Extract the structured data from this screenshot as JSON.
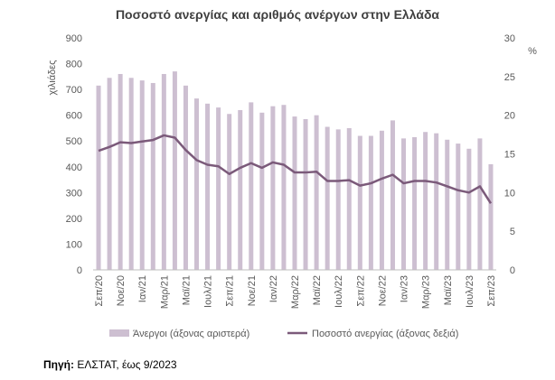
{
  "source": {
    "label": "Πηγή:",
    "text": " ΕΛΣΤΑΤ, έως 9/2023"
  },
  "chart_data": {
    "type": "bar",
    "title": "Ποσοστό ανεργίας και αριθμός ανέργων στην Ελλάδα",
    "ylabel_left": "χιλιάδες",
    "ylabel_right": "%",
    "ylim_left": [
      0,
      900
    ],
    "yticks_left": [
      0,
      100,
      200,
      300,
      400,
      500,
      600,
      700,
      800,
      900
    ],
    "ylim_right": [
      0,
      30
    ],
    "yticks_right": [
      0,
      5,
      10,
      15,
      20,
      25,
      30
    ],
    "grid": false,
    "legend_position": "bottom",
    "x": [
      "Σεπ/20",
      "Οκτ/20",
      "Νοε/20",
      "Δεκ/20",
      "Ιαν/21",
      "Φεβ/21",
      "Μαρ/21",
      "Απρ/21",
      "Μαϊ/21",
      "Ιουν/21",
      "Ιουλ/21",
      "Αυγ/21",
      "Σεπ/21",
      "Οκτ/21",
      "Νοε/21",
      "Δεκ/21",
      "Ιαν/22",
      "Φεβ/22",
      "Μαρ/22",
      "Απρ/22",
      "Μαϊ/22",
      "Ιουν/22",
      "Ιουλ/22",
      "Αυγ/22",
      "Σεπ/22",
      "Οκτ/22",
      "Νοε/22",
      "Δεκ/22",
      "Ιαν/23",
      "Φεβ/23",
      "Μαρ/23",
      "Απρ/23",
      "Μαϊ/23",
      "Ιουν/23",
      "Ιουλ/23",
      "Αυγ/23",
      "Σεπ/23"
    ],
    "xtick_labels": [
      "Σεπ/20",
      "Νοε/20",
      "Ιαν/21",
      "Μαρ/21",
      "Μαϊ/21",
      "Ιουλ/21",
      "Σεπ/21",
      "Νοε/21",
      "Ιαν/22",
      "Μαρ/22",
      "Μαϊ/22",
      "Ιουλ/22",
      "Σεπ/22",
      "Νοε/22",
      "Ιαν/23",
      "Μαρ/23",
      "Μαϊ/23",
      "Ιουλ/23",
      "Σεπ/23"
    ],
    "series": [
      {
        "name": "Άνεργοι (άξονας αριστερά)",
        "type": "bar",
        "axis": "left",
        "color": "#cdbfd1",
        "values": [
          715,
          745,
          760,
          745,
          735,
          725,
          760,
          770,
          715,
          665,
          645,
          630,
          605,
          620,
          650,
          610,
          635,
          640,
          595,
          585,
          600,
          555,
          545,
          550,
          520,
          520,
          540,
          580,
          510,
          515,
          535,
          530,
          505,
          490,
          470,
          510,
          410
        ]
      },
      {
        "name": "Ποσοστό ανεργίας (άξονας δεξιά)",
        "type": "line",
        "axis": "right",
        "color": "#7b5a7a",
        "values": [
          15.4,
          15.9,
          16.5,
          16.4,
          16.6,
          16.8,
          17.4,
          17.1,
          15.5,
          14.2,
          13.6,
          13.4,
          12.4,
          13.2,
          13.8,
          13.2,
          13.9,
          13.6,
          12.6,
          12.6,
          12.7,
          11.5,
          11.5,
          11.6,
          10.9,
          11.2,
          11.8,
          12.3,
          11.2,
          11.5,
          11.5,
          11.3,
          10.8,
          10.3,
          10.0,
          10.8,
          8.6
        ]
      }
    ]
  }
}
